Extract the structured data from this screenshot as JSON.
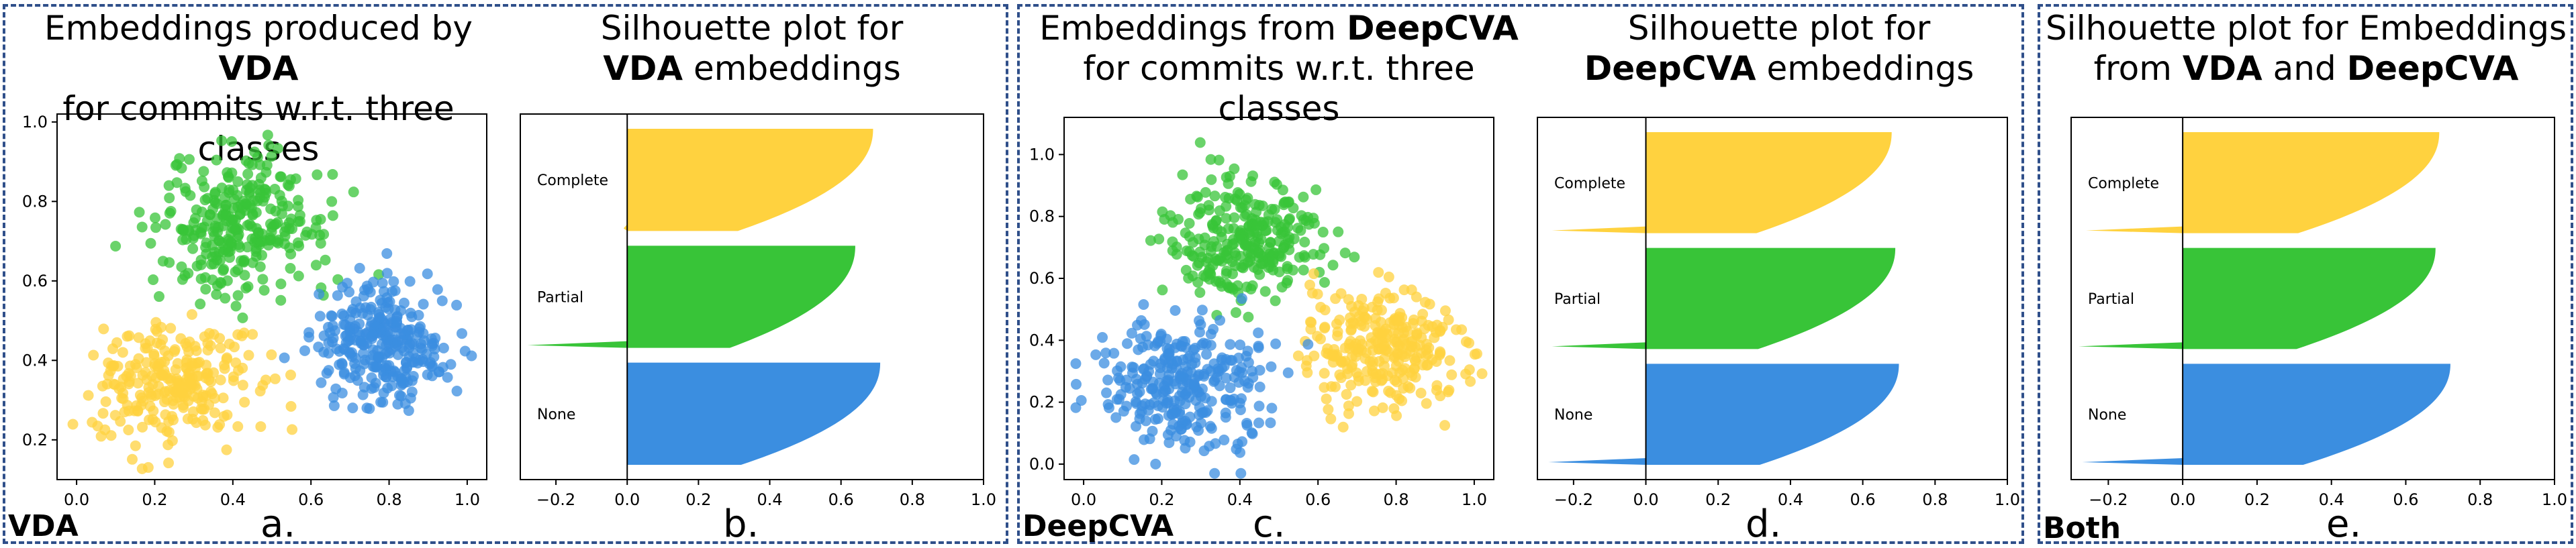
{
  "colors": {
    "complete": "#ffd23f",
    "partial": "#38c438",
    "none": "#3b8ee0",
    "border": "#2f4f8a"
  },
  "panels": [
    {
      "title_pre": "Embeddings produced by ",
      "title_bold": "VDA",
      "title_line2": "for commits w.r.t. three classes"
    },
    {
      "title_line1": "Silhouette plot for",
      "title_bold": "VDA",
      "title_post": " embeddings"
    },
    {
      "title_pre": "Embeddings from ",
      "title_bold": "DeepCVA",
      "title_line2": "for commits w.r.t. three classes"
    },
    {
      "title_line1": "Silhouette plot for",
      "title_bold": "DeepCVA",
      "title_post": " embeddings"
    },
    {
      "title_line1": "Silhouette plot for Embeddings",
      "title_pre2": "from ",
      "title_bold1": "VDA",
      "title_mid": " and ",
      "title_bold2": "DeepCVA"
    }
  ],
  "tags": {
    "vda": "VDA",
    "deepcva": "DeepCVA",
    "both": "Both"
  },
  "sublabels": {
    "a": "a.",
    "b": "b.",
    "c": "c.",
    "d": "d.",
    "e": "e."
  },
  "chart_data": [
    {
      "type": "scatter",
      "id": "a",
      "xlim": [
        -0.05,
        1.05
      ],
      "ylim": [
        0.1,
        1.02
      ],
      "xticks": [
        "0.0",
        "0.2",
        "0.4",
        "0.6",
        "0.8",
        "1.0"
      ],
      "yticks": [
        "0.2",
        "0.4",
        "0.6",
        "0.8",
        "1.0"
      ],
      "xtick_values": [
        0.0,
        0.2,
        0.4,
        0.6,
        0.8,
        1.0
      ],
      "ytick_values": [
        0.2,
        0.4,
        0.6,
        0.8,
        1.0
      ],
      "clusters": [
        {
          "cls": "complete",
          "cx": 0.24,
          "cy": 0.34,
          "sx": 0.1,
          "sy": 0.075,
          "n": 260
        },
        {
          "cls": "partial",
          "cx": 0.43,
          "cy": 0.74,
          "sx": 0.11,
          "sy": 0.09,
          "n": 300
        },
        {
          "cls": "none",
          "cx": 0.79,
          "cy": 0.44,
          "sx": 0.09,
          "sy": 0.075,
          "n": 300
        }
      ]
    },
    {
      "type": "area",
      "id": "b",
      "xlim": [
        -0.3,
        1.0
      ],
      "xticks": [
        "−0.2",
        "0.0",
        "0.2",
        "0.4",
        "0.6",
        "0.8",
        "1.0"
      ],
      "xtick_values": [
        -0.2,
        0.0,
        0.2,
        0.4,
        0.6,
        0.8,
        1.0
      ],
      "groups": [
        {
          "label": "Complete",
          "cls": "complete",
          "max": 0.69,
          "min": -0.01
        },
        {
          "label": "Partial",
          "cls": "partial",
          "max": 0.64,
          "min": -0.28
        },
        {
          "label": "None",
          "cls": "none",
          "max": 0.71,
          "min": 0.0
        }
      ]
    },
    {
      "type": "scatter",
      "id": "c",
      "xlim": [
        -0.05,
        1.05
      ],
      "ylim": [
        -0.05,
        1.12
      ],
      "xticks": [
        "0.0",
        "0.2",
        "0.4",
        "0.6",
        "0.8",
        "1.0"
      ],
      "yticks": [
        "0.0",
        "0.2",
        "0.4",
        "0.6",
        "0.8",
        "1.0"
      ],
      "xtick_values": [
        0.0,
        0.2,
        0.4,
        0.6,
        0.8,
        1.0
      ],
      "ytick_values": [
        0.0,
        0.2,
        0.4,
        0.6,
        0.8,
        1.0
      ],
      "clusters": [
        {
          "cls": "partial",
          "cx": 0.42,
          "cy": 0.72,
          "sx": 0.1,
          "sy": 0.1,
          "n": 280
        },
        {
          "cls": "complete",
          "cx": 0.76,
          "cy": 0.38,
          "sx": 0.1,
          "sy": 0.1,
          "n": 280
        },
        {
          "cls": "none",
          "cx": 0.26,
          "cy": 0.25,
          "sx": 0.1,
          "sy": 0.1,
          "n": 300
        }
      ]
    },
    {
      "type": "area",
      "id": "d",
      "xlim": [
        -0.3,
        1.0
      ],
      "xticks": [
        "−0.2",
        "0.0",
        "0.2",
        "0.4",
        "0.6",
        "0.8",
        "1.0"
      ],
      "xtick_values": [
        -0.2,
        0.0,
        0.2,
        0.4,
        0.6,
        0.8,
        1.0
      ],
      "groups": [
        {
          "label": "Complete",
          "cls": "complete",
          "max": 0.68,
          "min": -0.26
        },
        {
          "label": "Partial",
          "cls": "partial",
          "max": 0.69,
          "min": -0.26
        },
        {
          "label": "None",
          "cls": "none",
          "max": 0.7,
          "min": -0.27
        }
      ]
    },
    {
      "type": "area",
      "id": "e",
      "xlim": [
        -0.3,
        1.0
      ],
      "xticks": [
        "−0.2",
        "0.0",
        "0.2",
        "0.4",
        "0.6",
        "0.8",
        "1.0"
      ],
      "xtick_values": [
        -0.2,
        0.0,
        0.2,
        0.4,
        0.6,
        0.8,
        1.0
      ],
      "groups": [
        {
          "label": "Complete",
          "cls": "complete",
          "max": 0.69,
          "min": -0.26
        },
        {
          "label": "Partial",
          "cls": "partial",
          "max": 0.68,
          "min": -0.28
        },
        {
          "label": "None",
          "cls": "none",
          "max": 0.72,
          "min": -0.27
        }
      ]
    }
  ]
}
